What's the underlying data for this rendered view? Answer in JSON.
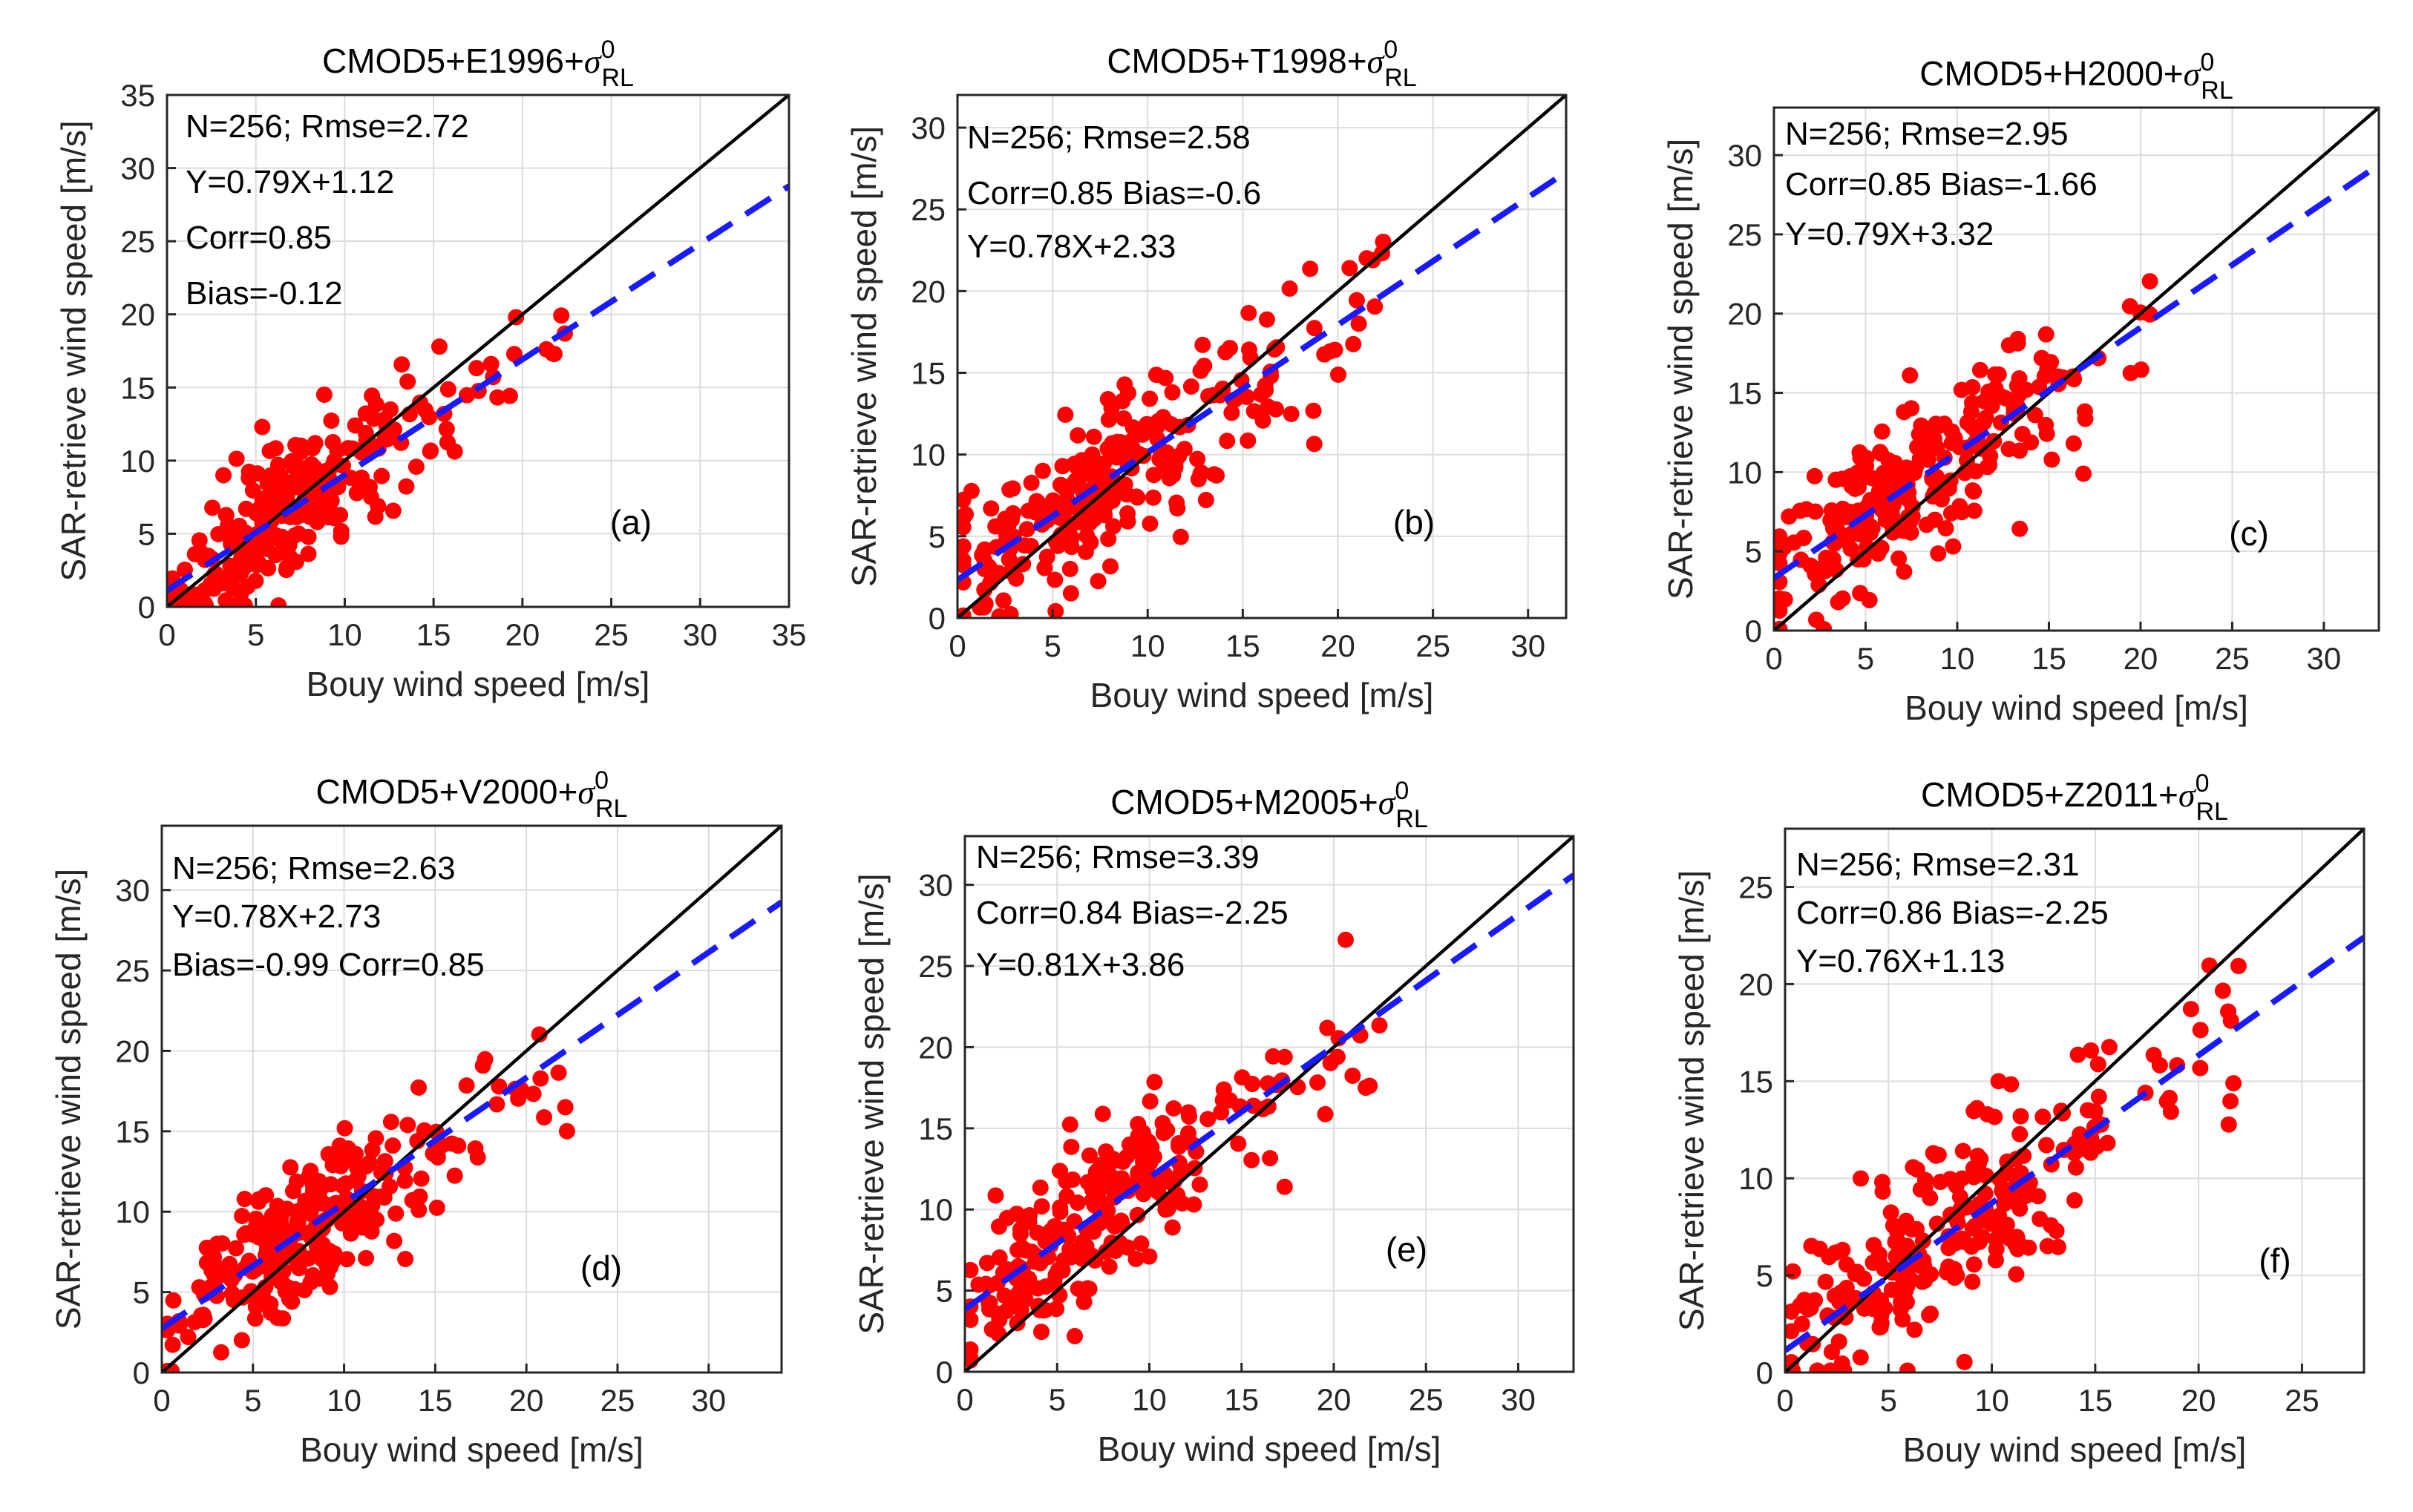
{
  "chart_data": [
    {
      "type": "scatter",
      "panel": "(a)",
      "title": "CMOD5+E1996+",
      "title_sigma": "σ",
      "title_sup": "0",
      "title_sub": "RL",
      "xlabel": "Bouy wind speed [m/s]",
      "ylabel": "SAR-retrieve wind speed [m/s]",
      "xlim": [
        0,
        35
      ],
      "ylim": [
        0,
        35
      ],
      "xticks": [
        0,
        5,
        10,
        15,
        20,
        25,
        30,
        35
      ],
      "yticks": [
        0,
        5,
        10,
        15,
        20,
        25,
        30,
        35
      ],
      "stats": [
        "N=256;  Rmse=2.72",
        "Y=0.79X+1.12",
        "Corr=0.85",
        "Bias=-0.12"
      ],
      "fit": {
        "slope": 0.79,
        "intercept": 1.12
      },
      "seed": 11,
      "n": 256
    },
    {
      "type": "scatter",
      "panel": "(b)",
      "title": "CMOD5+T1998+",
      "title_sigma": "σ",
      "title_sup": "0",
      "title_sub": "RL",
      "xlabel": "Bouy wind speed [m/s]",
      "ylabel": "SAR-retrieve wind speed [m/s]",
      "xlim": [
        0,
        32
      ],
      "ylim": [
        0,
        32
      ],
      "xticks": [
        0,
        5,
        10,
        15,
        20,
        25,
        30
      ],
      "yticks": [
        0,
        5,
        10,
        15,
        20,
        25,
        30
      ],
      "stats": [
        "N=256;  Rmse=2.58",
        "Corr=0.85  Bias=-0.6",
        "Y=0.78X+2.33"
      ],
      "fit": {
        "slope": 0.78,
        "intercept": 2.33
      },
      "seed": 22,
      "n": 256
    },
    {
      "type": "scatter",
      "panel": "(c)",
      "title": "CMOD5+H2000+",
      "title_sigma": "σ",
      "title_sup": "0",
      "title_sub": "RL",
      "xlabel": "Bouy wind speed [m/s]",
      "ylabel": "SAR-retrieve wind speed [m/s]",
      "xlim": [
        0,
        33
      ],
      "ylim": [
        0,
        33
      ],
      "xticks": [
        0,
        5,
        10,
        15,
        20,
        25,
        30
      ],
      "yticks": [
        0,
        5,
        10,
        15,
        20,
        25,
        30
      ],
      "stats": [
        "N=256;  Rmse=2.95",
        "Corr=0.85  Bias=-1.66",
        "Y=0.79X+3.32"
      ],
      "fit": {
        "slope": 0.79,
        "intercept": 3.32
      },
      "seed": 33,
      "n": 256
    },
    {
      "type": "scatter",
      "panel": "(d)",
      "title": "CMOD5+V2000+",
      "title_sigma": "σ",
      "title_sup": "0",
      "title_sub": "RL",
      "xlabel": "Bouy wind speed [m/s]",
      "ylabel": "SAR-retrieve wind speed [m/s]",
      "xlim": [
        0,
        34
      ],
      "ylim": [
        0,
        34
      ],
      "xticks": [
        0,
        5,
        10,
        15,
        20,
        25,
        30
      ],
      "yticks": [
        0,
        5,
        10,
        15,
        20,
        25,
        30
      ],
      "stats": [
        "N=256;  Rmse=2.63",
        "Y=0.78X+2.73",
        "Bias=-0.99   Corr=0.85"
      ],
      "fit": {
        "slope": 0.78,
        "intercept": 2.73
      },
      "seed": 44,
      "n": 256
    },
    {
      "type": "scatter",
      "panel": "(e)",
      "title": "CMOD5+M2005+",
      "title_sigma": "σ",
      "title_sup": "0",
      "title_sub": "RL",
      "xlabel": "Bouy wind speed [m/s]",
      "ylabel": "SAR-retrieve wind speed [m/s]",
      "xlim": [
        0,
        33
      ],
      "ylim": [
        0,
        33
      ],
      "xticks": [
        0,
        5,
        10,
        15,
        20,
        25,
        30
      ],
      "yticks": [
        0,
        5,
        10,
        15,
        20,
        25,
        30
      ],
      "stats": [
        "N=256;  Rmse=3.39",
        "Corr=0.84  Bias=-2.25",
        "Y=0.81X+3.86"
      ],
      "fit": {
        "slope": 0.81,
        "intercept": 3.86
      },
      "seed": 55,
      "n": 256
    },
    {
      "type": "scatter",
      "panel": "(f)",
      "title": "CMOD5+Z2011+",
      "title_sigma": "σ",
      "title_sup": "0",
      "title_sub": "RL",
      "xlabel": "Bouy wind speed [m/s]",
      "ylabel": "SAR-retrieve wind speed [m/s]",
      "xlim": [
        0,
        28
      ],
      "ylim": [
        0,
        28
      ],
      "xticks": [
        0,
        5,
        10,
        15,
        20,
        25
      ],
      "yticks": [
        0,
        5,
        10,
        15,
        20,
        25
      ],
      "stats": [
        "N=256;  Rmse=2.31",
        "Corr=0.86  Bias=-2.25",
        "Y=0.76X+1.13"
      ],
      "fit": {
        "slope": 0.76,
        "intercept": 1.13
      },
      "seed": 66,
      "n": 256
    }
  ]
}
